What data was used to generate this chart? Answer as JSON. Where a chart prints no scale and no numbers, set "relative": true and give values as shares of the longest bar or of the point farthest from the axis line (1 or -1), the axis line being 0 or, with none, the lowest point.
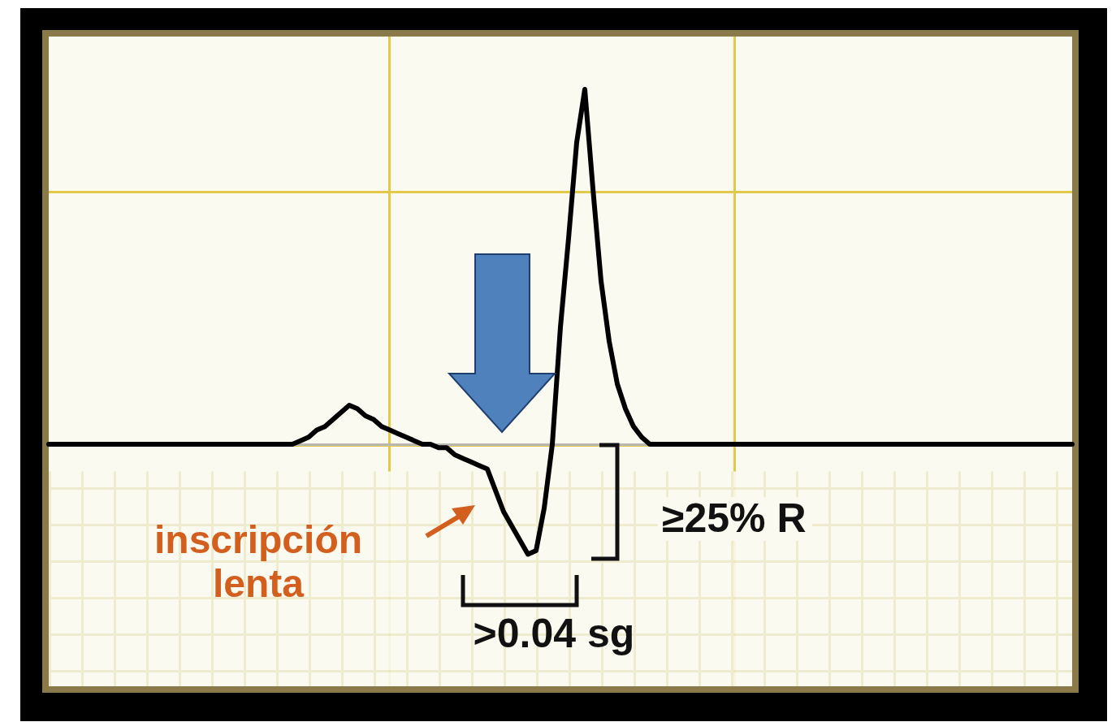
{
  "chart_data": {
    "type": "line",
    "relative": true,
    "categories": [
      null,
      null,
      null,
      null,
      null,
      null,
      null,
      null,
      null,
      null,
      null,
      null,
      null,
      null,
      null,
      null,
      null,
      null,
      null,
      null,
      null,
      null,
      null,
      null,
      null,
      null,
      null,
      null,
      null,
      null,
      null,
      null,
      null,
      null,
      null,
      null,
      null,
      null,
      null,
      null,
      null,
      null,
      null,
      null,
      null,
      null,
      null,
      null,
      null,
      null,
      null,
      null,
      null,
      null,
      null,
      null,
      null,
      null,
      null,
      null,
      null,
      null,
      null,
      null,
      null,
      null,
      null,
      null,
      null,
      null,
      null,
      null,
      null,
      null,
      null,
      null,
      null,
      null,
      null,
      null,
      null,
      null,
      null,
      null,
      null,
      null,
      null,
      null,
      null,
      null,
      null,
      null,
      null,
      null,
      null,
      null,
      null,
      null,
      null,
      null,
      null,
      null,
      null,
      null,
      null,
      null,
      null,
      null,
      null,
      null,
      null,
      null,
      null,
      null,
      null,
      null,
      null,
      null,
      null,
      null,
      null,
      null,
      null,
      null,
      null,
      null,
      null
    ],
    "series": [
      {
        "color": "#000000",
        "values": [
          0,
          0,
          0,
          0,
          0,
          0,
          0,
          0,
          0,
          0,
          0,
          0,
          0,
          0,
          0,
          0,
          0,
          0,
          0,
          0,
          0,
          0,
          0,
          0,
          0,
          0,
          0,
          0,
          0,
          0,
          0,
          0.01,
          0.02,
          0.04,
          0.05,
          0.07,
          0.09,
          0.11,
          0.1,
          0.08,
          0.07,
          0.05,
          0.04,
          0.03,
          0.02,
          0.01,
          0,
          0,
          -0.01,
          -0.01,
          -0.03,
          -0.04,
          -0.05,
          -0.06,
          -0.07,
          -0.13,
          -0.19,
          -0.23,
          -0.27,
          -0.31,
          -0.3,
          -0.18,
          0,
          0.33,
          0.58,
          0.85,
          1,
          0.72,
          0.46,
          0.29,
          0.17,
          0.1,
          0.05,
          0.02,
          0,
          0,
          0,
          0,
          0,
          0,
          0,
          0,
          0,
          0,
          0,
          0,
          0,
          0,
          0,
          0,
          0,
          0,
          0,
          0,
          0,
          0,
          0,
          0,
          0,
          0,
          0,
          0,
          0,
          0,
          0,
          0,
          0,
          0,
          0,
          0,
          0,
          0,
          0,
          0,
          0,
          0,
          0,
          0,
          0,
          0,
          0,
          0,
          0,
          0,
          0,
          0,
          0
        ]
      }
    ],
    "annotations": [
      "inscripción lenta",
      "≥25% R",
      ">0.04 sg"
    ]
  }
}
